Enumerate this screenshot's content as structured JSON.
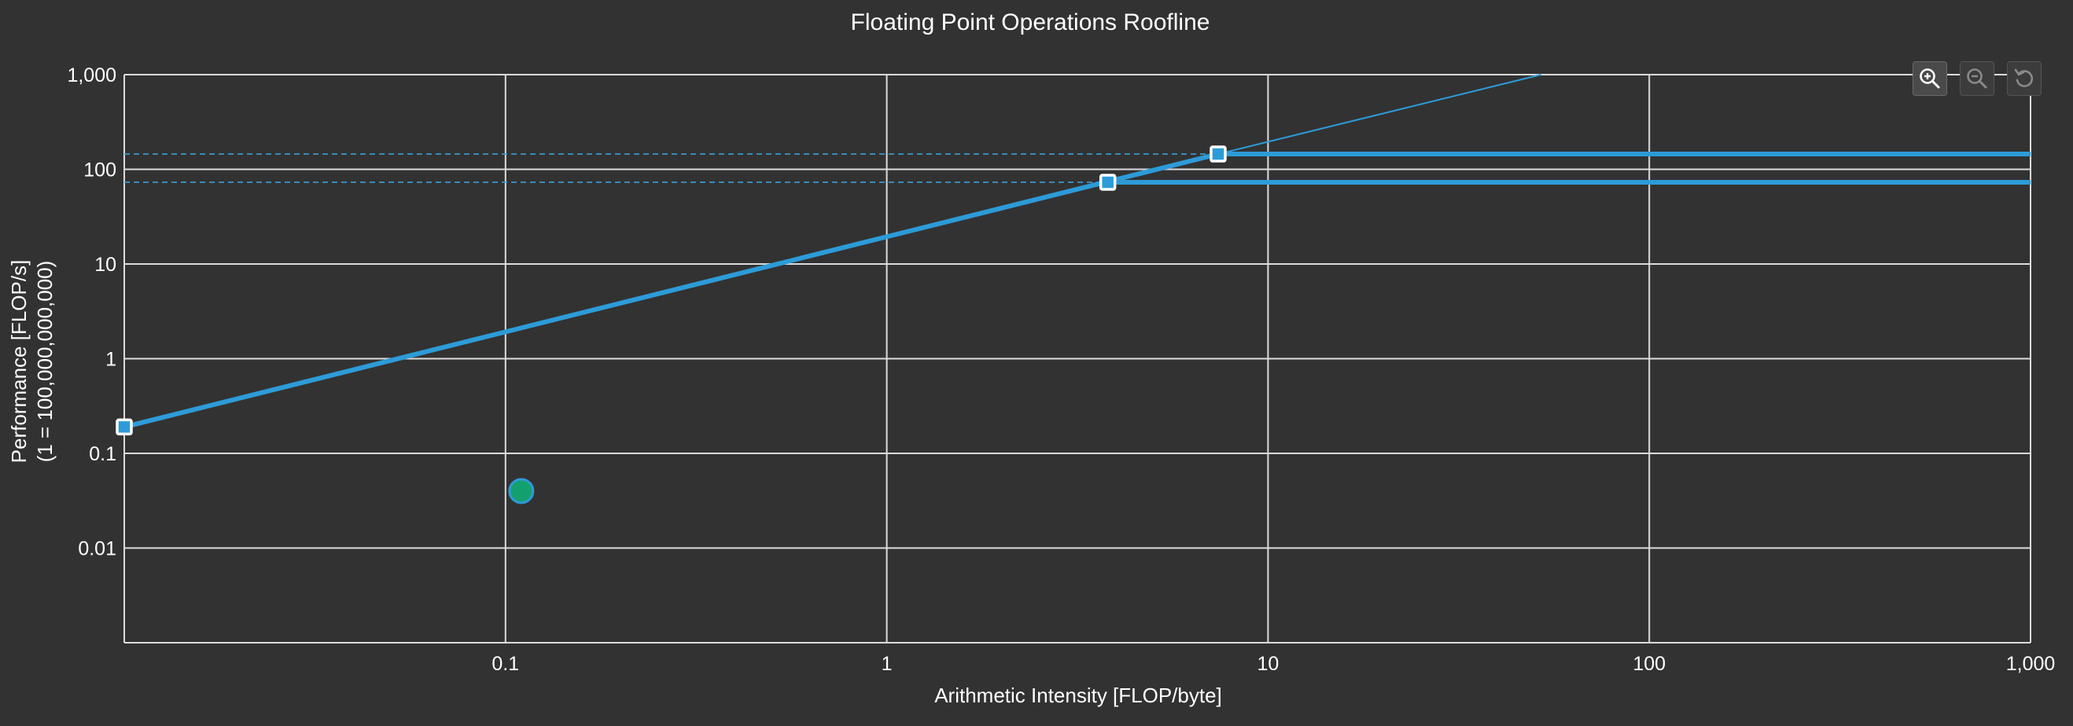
{
  "colors": {
    "background": "#323232",
    "grid": "#dcdcdc",
    "roof_line": "#2d9bd8",
    "ceiling_dash": "#3aa0d8",
    "point_fill": "#14a06e",
    "point_stroke": "#2d9bd8",
    "marker_fill": "#2d9bd8",
    "marker_stroke": "#ffffff"
  },
  "toolbar": {
    "zoom_in_icon": "zoom-in-icon",
    "zoom_out_icon": "zoom-out-icon",
    "reset_icon": "reset-icon"
  },
  "chart_data": {
    "type": "line",
    "title": "Floating Point Operations Roofline",
    "xlabel": "Arithmetic Intensity [FLOP/byte]",
    "ylabel_line1": "Performance [FLOP/s]",
    "ylabel_line2": "(1 = 100,000,000,000)",
    "x_scale": "log",
    "y_scale": "log",
    "xlim": [
      0.01,
      1000
    ],
    "ylim": [
      0.001,
      1000
    ],
    "grid": true,
    "x_ticks": [
      {
        "value": 0.1,
        "label": "0.1"
      },
      {
        "value": 1,
        "label": "1"
      },
      {
        "value": 10,
        "label": "10"
      },
      {
        "value": 100,
        "label": "100"
      },
      {
        "value": 1000,
        "label": "1,000"
      }
    ],
    "y_ticks": [
      {
        "value": 1000,
        "label": "1,000"
      },
      {
        "value": 100,
        "label": "100"
      },
      {
        "value": 10,
        "label": "10"
      },
      {
        "value": 1,
        "label": "1"
      },
      {
        "value": 0.1,
        "label": "0.1"
      },
      {
        "value": 0.01,
        "label": "0.01"
      }
    ],
    "series": [
      {
        "kind": "memory_bound_diagonal",
        "points": [
          [
            0.01,
            0.19
          ],
          [
            52,
            1000
          ]
        ]
      },
      {
        "kind": "compute_ceiling_upper",
        "ridge": [
          7.4,
          145
        ],
        "end": [
          1000,
          145
        ]
      },
      {
        "kind": "compute_ceiling_lower",
        "ridge": [
          3.8,
          73
        ],
        "end": [
          1000,
          73
        ]
      }
    ],
    "ceiling_guides": [
      145,
      73
    ],
    "markers": [
      {
        "x": 0.01,
        "y": 0.19
      },
      {
        "x": 3.8,
        "y": 73
      },
      {
        "x": 7.4,
        "y": 145
      }
    ],
    "kernel_points": [
      {
        "x": 0.11,
        "y": 0.04
      }
    ]
  }
}
